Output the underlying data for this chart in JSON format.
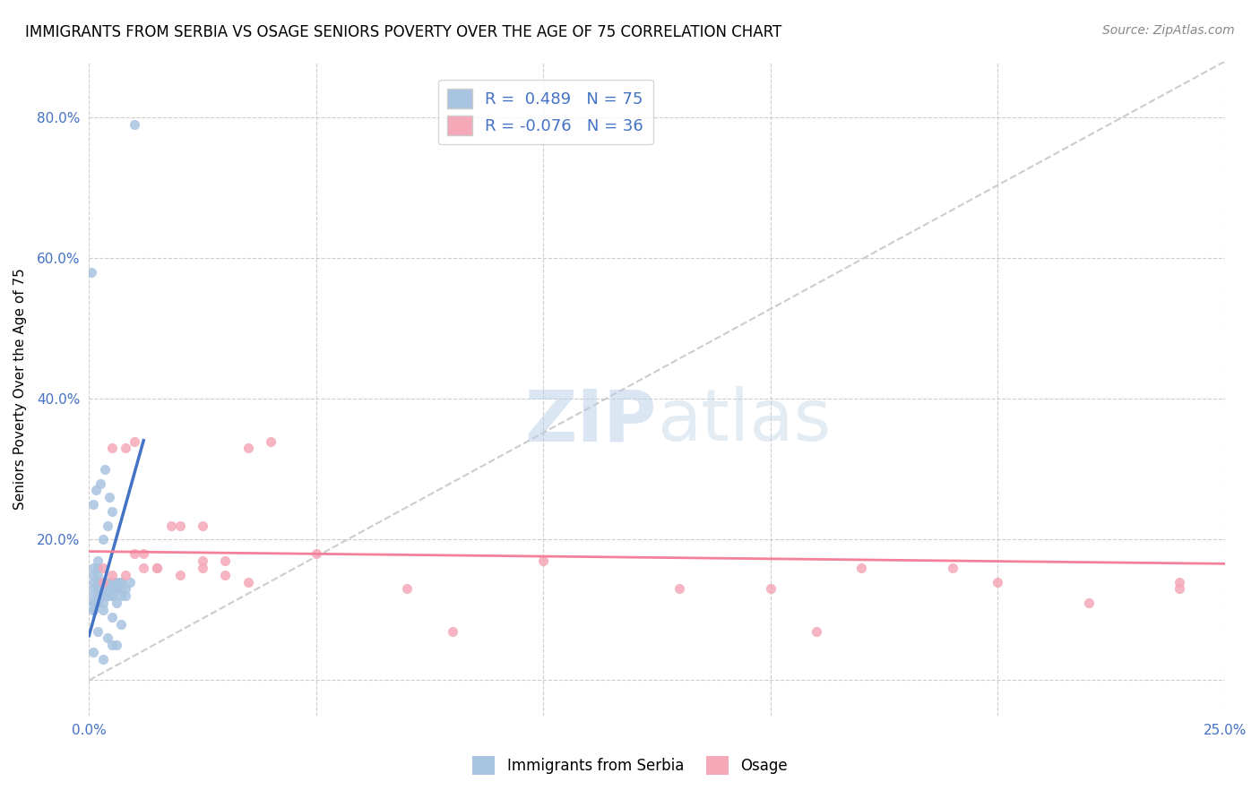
{
  "title": "IMMIGRANTS FROM SERBIA VS OSAGE SENIORS POVERTY OVER THE AGE OF 75 CORRELATION CHART",
  "source": "Source: ZipAtlas.com",
  "ylabel": "Seniors Poverty Over the Age of 75",
  "xlim": [
    0,
    0.25
  ],
  "ylim": [
    -0.05,
    0.88
  ],
  "r_serbia": 0.489,
  "n_serbia": 75,
  "r_osage": -0.076,
  "n_osage": 36,
  "color_serbia": "#a8c4e0",
  "color_osage": "#f4a8b8",
  "line_color_serbia": "#4472c4",
  "line_color_osage": "#f48099",
  "serbia_scatter_x": [
    0.002,
    0.003,
    0.001,
    0.004,
    0.005,
    0.002,
    0.001,
    0.003,
    0.006,
    0.004,
    0.002,
    0.001,
    0.003,
    0.005,
    0.007,
    0.002,
    0.004,
    0.006,
    0.001,
    0.003,
    0.002,
    0.004,
    0.001,
    0.003,
    0.005,
    0.002,
    0.004,
    0.006,
    0.001,
    0.003,
    0.008,
    0.002,
    0.004,
    0.006,
    0.001,
    0.003,
    0.005,
    0.007,
    0.002,
    0.004,
    0.001,
    0.003,
    0.005,
    0.007,
    0.002,
    0.004,
    0.006,
    0.001,
    0.003,
    0.005,
    0.009,
    0.002,
    0.004,
    0.006,
    0.001,
    0.003,
    0.005,
    0.007,
    0.002,
    0.004,
    0.001,
    0.0015,
    0.0025,
    0.0035,
    0.0045,
    0.0005,
    0.001,
    0.002,
    0.003,
    0.004,
    0.005,
    0.006,
    0.007,
    0.008,
    0.01
  ],
  "serbia_scatter_y": [
    0.16,
    0.14,
    0.15,
    0.13,
    0.12,
    0.11,
    0.1,
    0.13,
    0.14,
    0.12,
    0.11,
    0.13,
    0.14,
    0.12,
    0.13,
    0.12,
    0.13,
    0.14,
    0.11,
    0.12,
    0.15,
    0.13,
    0.14,
    0.12,
    0.13,
    0.16,
    0.14,
    0.13,
    0.12,
    0.11,
    0.13,
    0.14,
    0.12,
    0.13,
    0.11,
    0.12,
    0.13,
    0.14,
    0.12,
    0.13,
    0.11,
    0.1,
    0.09,
    0.08,
    0.07,
    0.06,
    0.05,
    0.04,
    0.03,
    0.05,
    0.14,
    0.13,
    0.12,
    0.11,
    0.1,
    0.13,
    0.14,
    0.12,
    0.13,
    0.12,
    0.25,
    0.27,
    0.28,
    0.3,
    0.26,
    0.58,
    0.16,
    0.17,
    0.2,
    0.22,
    0.24,
    0.13,
    0.14,
    0.12,
    0.79
  ],
  "osage_scatter_x": [
    0.003,
    0.005,
    0.008,
    0.01,
    0.012,
    0.015,
    0.018,
    0.02,
    0.025,
    0.03,
    0.035,
    0.07,
    0.08,
    0.15,
    0.17,
    0.2,
    0.22,
    0.24,
    0.005,
    0.01,
    0.015,
    0.02,
    0.025,
    0.03,
    0.035,
    0.04,
    0.003,
    0.008,
    0.012,
    0.025,
    0.05,
    0.1,
    0.13,
    0.16,
    0.19,
    0.24
  ],
  "osage_scatter_y": [
    0.16,
    0.15,
    0.33,
    0.34,
    0.18,
    0.16,
    0.22,
    0.15,
    0.22,
    0.17,
    0.14,
    0.13,
    0.07,
    0.13,
    0.16,
    0.14,
    0.11,
    0.13,
    0.33,
    0.18,
    0.16,
    0.22,
    0.16,
    0.15,
    0.33,
    0.34,
    0.14,
    0.15,
    0.16,
    0.17,
    0.18,
    0.17,
    0.13,
    0.07,
    0.16,
    0.14
  ]
}
